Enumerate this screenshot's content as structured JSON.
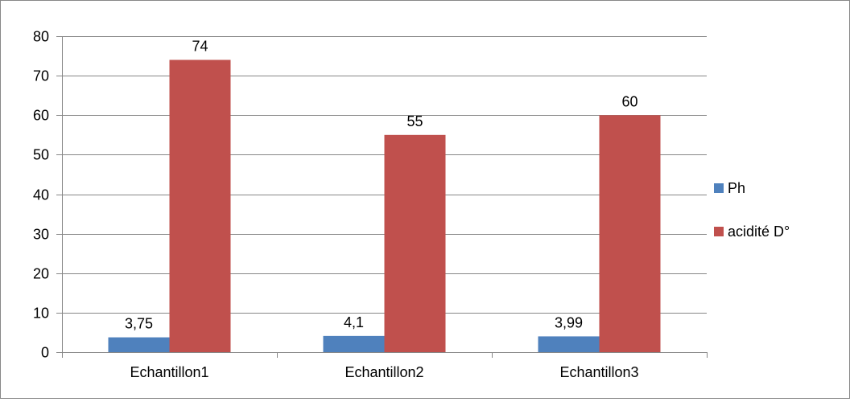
{
  "chart_data": {
    "type": "bar",
    "categories": [
      "Echantillon1",
      "Echantillon2",
      "Echantillon3"
    ],
    "series": [
      {
        "name": "Ph",
        "values": [
          3.75,
          4.1,
          3.99
        ],
        "labels": [
          "3,75",
          "4,1",
          "3,99"
        ],
        "color": "#4F81BD"
      },
      {
        "name": "acidité D°",
        "values": [
          74,
          55,
          60
        ],
        "labels": [
          "74",
          "55",
          "60"
        ],
        "color": "#C0504D"
      }
    ],
    "ylim": [
      0,
      80
    ],
    "yticks": [
      0,
      10,
      20,
      30,
      40,
      50,
      60,
      70,
      80
    ],
    "ytick_labels": [
      "0",
      "10",
      "20",
      "30",
      "40",
      "50",
      "60",
      "70",
      "80"
    ],
    "grid": true,
    "legend_position": "right",
    "title": "",
    "xlabel": "",
    "ylabel": ""
  },
  "colors": {
    "grid": "#878787",
    "axis": "#878787",
    "frame": "#878787"
  }
}
